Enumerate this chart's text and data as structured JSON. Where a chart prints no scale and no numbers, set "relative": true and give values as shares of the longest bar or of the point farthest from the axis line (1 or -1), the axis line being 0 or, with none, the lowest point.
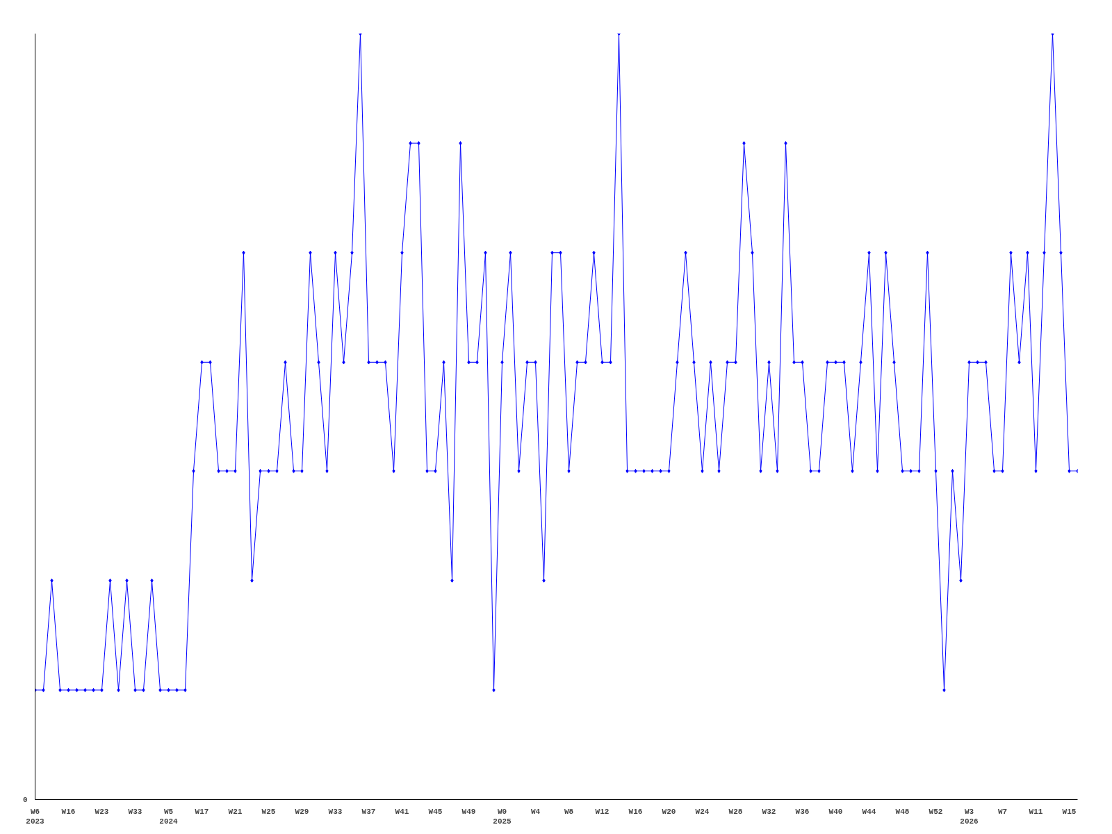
{
  "chart_data": {
    "type": "line",
    "relative": true,
    "marker": "diamond",
    "line_style": "solid",
    "grid": false,
    "annotations": [
      "0"
    ],
    "categories": [
      "W6\n2023",
      null,
      null,
      null,
      "W16",
      null,
      null,
      null,
      "W23",
      null,
      null,
      null,
      "W33",
      null,
      null,
      null,
      "W5\n2024",
      null,
      null,
      null,
      "W17",
      null,
      null,
      null,
      "W21",
      null,
      null,
      null,
      "W25",
      null,
      null,
      null,
      "W29",
      null,
      null,
      null,
      "W33",
      null,
      null,
      null,
      "W37",
      null,
      null,
      null,
      "W41",
      null,
      null,
      null,
      "W45",
      null,
      null,
      null,
      "W49",
      null,
      null,
      null,
      "W0\n2025",
      null,
      null,
      null,
      "W4",
      null,
      null,
      null,
      "W8",
      null,
      null,
      null,
      "W12",
      null,
      null,
      null,
      "W16",
      null,
      null,
      null,
      "W20",
      null,
      null,
      null,
      "W24",
      null,
      null,
      null,
      "W28",
      null,
      null,
      null,
      "W32",
      null,
      null,
      null,
      "W36",
      null,
      null,
      null,
      "W40",
      null,
      null,
      null,
      "W44",
      null,
      null,
      null,
      "W48",
      null,
      null,
      null,
      "W52",
      null,
      null,
      null,
      "W3\n2026",
      null,
      null,
      null,
      "W7",
      null,
      null,
      null,
      "W11",
      null,
      null,
      null,
      "W15",
      null
    ],
    "series": [
      {
        "color": "#0000ff",
        "values": [
          0.143,
          0.143,
          0.286,
          0.143,
          0.143,
          0.143,
          0.143,
          0.143,
          0.143,
          0.286,
          0.143,
          0.286,
          0.143,
          0.143,
          0.286,
          0.143,
          0.143,
          0.143,
          0.143,
          0.429,
          0.571,
          0.571,
          0.429,
          0.429,
          0.429,
          0.714,
          0.286,
          0.429,
          0.429,
          0.429,
          0.571,
          0.429,
          0.429,
          0.714,
          0.571,
          0.429,
          0.714,
          0.571,
          0.714,
          1,
          0.571,
          0.571,
          0.571,
          0.429,
          0.714,
          0.857,
          0.857,
          0.429,
          0.429,
          0.571,
          0.286,
          0.857,
          0.571,
          0.571,
          0.714,
          0.143,
          0.571,
          0.714,
          0.429,
          0.571,
          0.571,
          0.286,
          0.714,
          0.714,
          0.429,
          0.571,
          0.571,
          0.714,
          0.571,
          0.571,
          1,
          0.429,
          0.429,
          0.429,
          0.429,
          0.429,
          0.429,
          0.571,
          0.714,
          0.571,
          0.429,
          0.571,
          0.429,
          0.571,
          0.571,
          0.857,
          0.714,
          0.429,
          0.571,
          0.429,
          0.857,
          0.571,
          0.571,
          0.429,
          0.429,
          0.571,
          0.571,
          0.571,
          0.429,
          0.571,
          0.714,
          0.429,
          0.714,
          0.571,
          0.429,
          0.429,
          0.429,
          0.714,
          0.429,
          0.143,
          0.429,
          0.286,
          0.571,
          0.571,
          0.571,
          0.429,
          0.429,
          0.714,
          0.571,
          0.714,
          0.429,
          0.714,
          1,
          0.714,
          0.429,
          0.429
        ]
      }
    ]
  }
}
